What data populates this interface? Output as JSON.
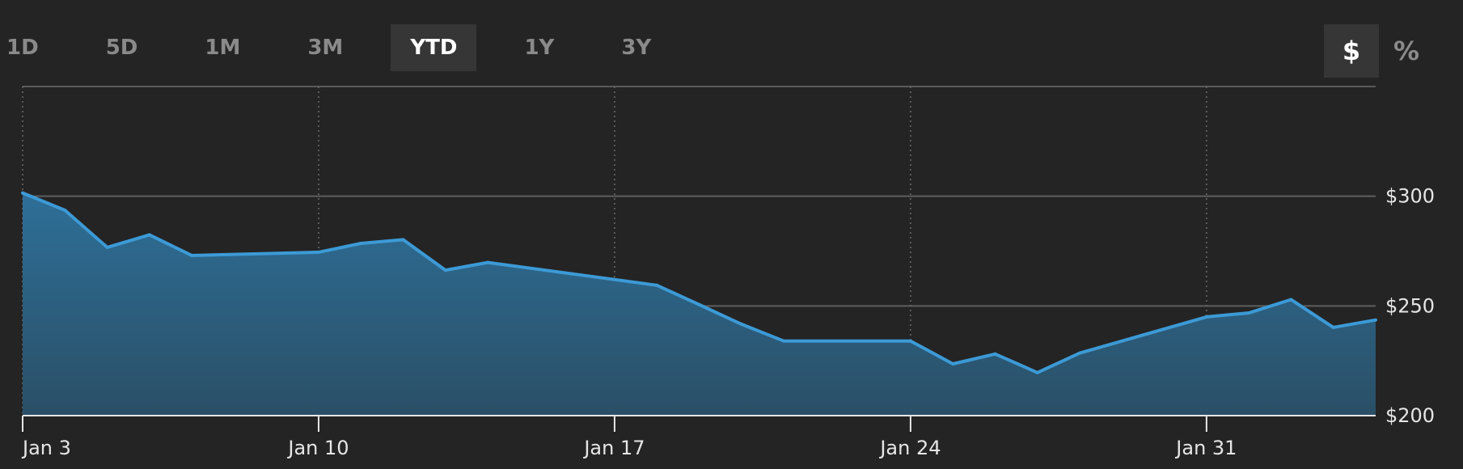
{
  "range_tabs": [
    "1D",
    "5D",
    "1M",
    "3M",
    "YTD",
    "1Y",
    "3Y"
  ],
  "active_range": "YTD",
  "unit_toggle": {
    "dollar": "$",
    "percent": "%",
    "active": "$"
  },
  "colors": {
    "line": "#3c9ad6",
    "fill_top": "#2e6f98",
    "fill_bottom": "#2a4f66",
    "background": "#242424"
  },
  "chart_data": {
    "type": "area",
    "title": "",
    "xlabel": "",
    "ylabel": "",
    "y_ticks": [
      {
        "value": 300,
        "label": "$300"
      },
      {
        "value": 250,
        "label": "$250"
      },
      {
        "value": 200,
        "label": "$200"
      }
    ],
    "ylim": [
      200,
      350
    ],
    "x_ticks": [
      {
        "date": "2022-01-03",
        "label": "Jan 3"
      },
      {
        "date": "2022-01-10",
        "label": "Jan 10"
      },
      {
        "date": "2022-01-17",
        "label": "Jan 17"
      },
      {
        "date": "2022-01-24",
        "label": "Jan 24"
      },
      {
        "date": "2022-01-31",
        "label": "Jan 31"
      }
    ],
    "xlim": [
      "2022-01-03",
      "2022-02-04"
    ],
    "grid": true,
    "series": [
      {
        "points": [
          {
            "x": "2022-01-03",
            "y": 301.5
          },
          {
            "x": "2022-01-04",
            "y": 293.6
          },
          {
            "x": "2022-01-05",
            "y": 276.7
          },
          {
            "x": "2022-01-06",
            "y": 282.4
          },
          {
            "x": "2022-01-07",
            "y": 273.0
          },
          {
            "x": "2022-01-10",
            "y": 274.5
          },
          {
            "x": "2022-01-11",
            "y": 278.5
          },
          {
            "x": "2022-01-12",
            "y": 280.2
          },
          {
            "x": "2022-01-13",
            "y": 266.3
          },
          {
            "x": "2022-01-14",
            "y": 269.8
          },
          {
            "x": "2022-01-18",
            "y": 259.4
          },
          {
            "x": "2022-01-19",
            "y": 250.6
          },
          {
            "x": "2022-01-20",
            "y": 241.7
          },
          {
            "x": "2022-01-21",
            "y": 234.0
          },
          {
            "x": "2022-01-24",
            "y": 234.0
          },
          {
            "x": "2022-01-25",
            "y": 223.6
          },
          {
            "x": "2022-01-26",
            "y": 228.1
          },
          {
            "x": "2022-01-27",
            "y": 219.6
          },
          {
            "x": "2022-01-28",
            "y": 228.5
          },
          {
            "x": "2022-01-31",
            "y": 245.0
          },
          {
            "x": "2022-02-01",
            "y": 246.8
          },
          {
            "x": "2022-02-02",
            "y": 252.9
          },
          {
            "x": "2022-02-03",
            "y": 240.2
          },
          {
            "x": "2022-02-04",
            "y": 243.6
          }
        ]
      }
    ]
  }
}
